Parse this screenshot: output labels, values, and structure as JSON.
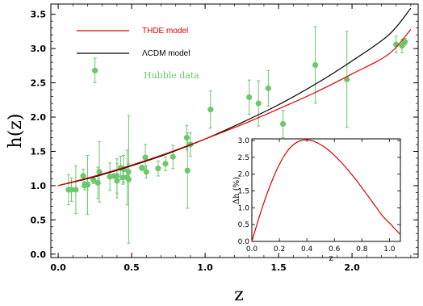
{
  "colors": {
    "thde": "#dd0000",
    "lcdm": "#000000",
    "hubble": "#6cc86c"
  },
  "chart_data": [
    {
      "type": "line",
      "title": "",
      "xlabel": "z",
      "ylabel": "h(z)",
      "xlim": [
        -0.05,
        2.45
      ],
      "ylim": [
        -0.05,
        3.65
      ],
      "xticks": [
        "0.0",
        "0.5",
        "1.0",
        "1.5",
        "2.0"
      ],
      "xtick_values": [
        0.0,
        0.5,
        1.0,
        1.5,
        2.0
      ],
      "yticks": [
        "0.0",
        "0.5",
        "1.0",
        "1.5",
        "2.0",
        "2.5",
        "3.0",
        "3.5"
      ],
      "ytick_values": [
        0.0,
        0.5,
        1.0,
        1.5,
        2.0,
        2.5,
        3.0,
        3.5
      ],
      "legend_position": "top-left",
      "series": [
        {
          "name": "THDE model",
          "color": "#dd0000",
          "x": [
            0,
            0.25,
            0.5,
            0.75,
            1.0,
            1.25,
            1.5,
            1.75,
            2.0,
            2.25,
            2.4
          ],
          "y": [
            1.0,
            1.14,
            1.3,
            1.48,
            1.68,
            1.89,
            2.12,
            2.36,
            2.63,
            2.92,
            3.28
          ]
        },
        {
          "name": "ΛCDM model",
          "color": "#000000",
          "x": [
            0,
            0.25,
            0.5,
            0.75,
            1.0,
            1.25,
            1.5,
            1.75,
            2.0,
            2.25,
            2.4
          ],
          "y": [
            1.0,
            1.13,
            1.29,
            1.47,
            1.68,
            1.92,
            2.18,
            2.48,
            2.82,
            3.2,
            3.59
          ]
        },
        {
          "name": "Hubble data",
          "type": "scatter",
          "color": "#6cc86c",
          "points": [
            {
              "x": 0.07,
              "y": 0.94,
              "err": 0.22
            },
            {
              "x": 0.09,
              "y": 0.94,
              "err": 0.17
            },
            {
              "x": 0.12,
              "y": 0.94,
              "err": 0.35
            },
            {
              "x": 0.17,
              "y": 1.14,
              "err": 0.1
            },
            {
              "x": 0.179,
              "y": 1.0,
              "err": 0.06
            },
            {
              "x": 0.199,
              "y": 1.02,
              "err": 0.08
            },
            {
              "x": 0.2,
              "y": 1.01,
              "err": 0.43
            },
            {
              "x": 0.24,
              "y": 1.08,
              "err": 0.05
            },
            {
              "x": 0.25,
              "y": 2.68,
              "err": 0.18
            },
            {
              "x": 0.27,
              "y": 1.04,
              "err": 0.23
            },
            {
              "x": 0.28,
              "y": 1.2,
              "err": 0.44
            },
            {
              "x": 0.352,
              "y": 1.13,
              "err": 0.2
            },
            {
              "x": 0.38,
              "y": 1.14,
              "err": 0.03
            },
            {
              "x": 0.4,
              "y": 1.14,
              "err": 0.25
            },
            {
              "x": 0.4004,
              "y": 1.07,
              "err": 0.25
            },
            {
              "x": 0.425,
              "y": 1.26,
              "err": 0.17
            },
            {
              "x": 0.44,
              "y": 1.12,
              "err": 0.1
            },
            {
              "x": 0.445,
              "y": 1.24,
              "err": 0.2
            },
            {
              "x": 0.47,
              "y": 1.12,
              "err": 0.4
            },
            {
              "x": 0.478,
              "y": 1.2,
              "err": 0.12
            },
            {
              "x": 0.48,
              "y": 1.09,
              "err": 0.93
            },
            {
              "x": 0.57,
              "y": 1.26,
              "err": 0.04
            },
            {
              "x": 0.593,
              "y": 1.41,
              "err": 0.19
            },
            {
              "x": 0.6,
              "y": 1.2,
              "err": 0.09
            },
            {
              "x": 0.68,
              "y": 1.25,
              "err": 0.11
            },
            {
              "x": 0.73,
              "y": 1.32,
              "err": 0.1
            },
            {
              "x": 0.781,
              "y": 1.42,
              "err": 0.17
            },
            {
              "x": 0.875,
              "y": 1.7,
              "err": 0.18
            },
            {
              "x": 0.88,
              "y": 1.22,
              "err": 0.55
            },
            {
              "x": 0.9,
              "y": 1.6,
              "err": 0.17
            },
            {
              "x": 1.037,
              "y": 2.11,
              "err": 0.27
            },
            {
              "x": 1.3,
              "y": 2.29,
              "err": 0.25
            },
            {
              "x": 1.363,
              "y": 2.2,
              "err": 0.33
            },
            {
              "x": 1.43,
              "y": 2.42,
              "err": 0.26
            },
            {
              "x": 1.53,
              "y": 1.9,
              "err": 0.2
            },
            {
              "x": 1.75,
              "y": 2.76,
              "err": 0.56
            },
            {
              "x": 1.965,
              "y": 2.55,
              "err": 0.7
            },
            {
              "x": 2.3,
              "y": 3.06,
              "err": 0.12
            },
            {
              "x": 2.34,
              "y": 3.04,
              "err": 0.1
            },
            {
              "x": 2.36,
              "y": 3.1,
              "err": 0.05
            }
          ]
        }
      ]
    },
    {
      "type": "line",
      "title": "",
      "xlabel": "z",
      "ylabel": "Δh (%)",
      "xlim": [
        0,
        1.08
      ],
      "ylim": [
        0,
        3.05
      ],
      "xticks": [
        "0.0",
        "0.2",
        "0.4",
        "0.6",
        "0.8",
        "1.0"
      ],
      "xtick_values": [
        0.0,
        0.2,
        0.4,
        0.6,
        0.8,
        1.0
      ],
      "yticks": [
        "0.0",
        "0.5",
        "1.0",
        "1.5",
        "2.0",
        "2.5",
        "3.0"
      ],
      "ytick_values": [
        0.0,
        0.5,
        1.0,
        1.5,
        2.0,
        2.5,
        3.0
      ],
      "series": [
        {
          "color": "#dd0000",
          "x": [
            0.0,
            0.05,
            0.1,
            0.15,
            0.2,
            0.25,
            0.3,
            0.35,
            0.4,
            0.45,
            0.5,
            0.55,
            0.6,
            0.65,
            0.7,
            0.75,
            0.8,
            0.85,
            0.9,
            0.95,
            1.0,
            1.05,
            1.08
          ],
          "y": [
            0.0,
            0.68,
            1.3,
            1.84,
            2.29,
            2.64,
            2.87,
            2.99,
            3.02,
            2.98,
            2.88,
            2.74,
            2.56,
            2.35,
            2.12,
            1.87,
            1.6,
            1.32,
            1.04,
            0.76,
            0.55,
            0.33,
            0.2
          ]
        }
      ]
    }
  ]
}
